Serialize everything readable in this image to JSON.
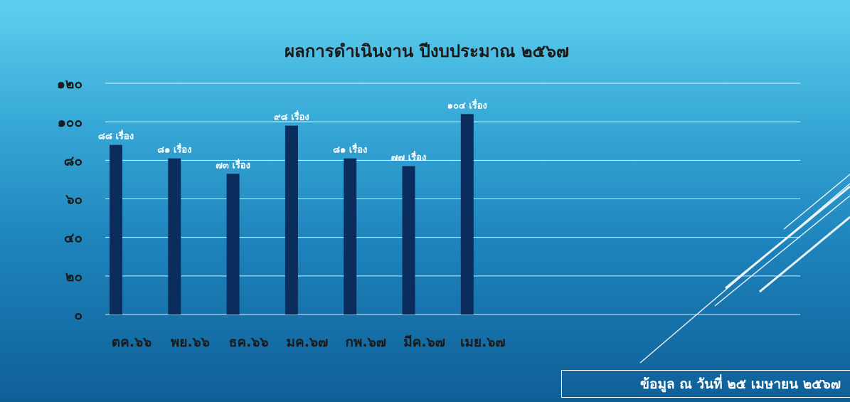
{
  "chart_data": {
    "type": "bar",
    "title": "ผลการดำเนินงาน ปีงบประมาณ ๒๕๖๗",
    "categories": [
      "ตค.๖๖",
      "พย.๖๖",
      "ธค.๖๖",
      "มค.๖๗",
      "กพ.๖๗",
      "มีค.๖๗",
      "เมย.๖๗"
    ],
    "values": [
      88,
      81,
      73,
      98,
      81,
      77,
      104
    ],
    "data_labels": [
      "๘๘ เรื่อง",
      "๘๑ เรื่อง",
      "๗๓ เรื่อง",
      "๙๘ เรื่อง",
      "๘๑ เรื่อง",
      "๗๗ เรื่อง",
      "๑๐๔ เรื่อง"
    ],
    "yticks": [
      0,
      20,
      40,
      60,
      80,
      100,
      120
    ],
    "ytick_labels": [
      "๐",
      "๒๐",
      "๔๐",
      "๖๐",
      "๘๐",
      "๑๐๐",
      "๑๒๐"
    ],
    "ylim": [
      0,
      120
    ],
    "grid": true,
    "xlabel": "",
    "ylabel": "",
    "bar_color": "#0b2d5e"
  },
  "footer": {
    "note": "ข้อมูล ณ วันที่ ๒๕ เมษายน ๒๕๖๗"
  },
  "colors": {
    "background_top": "#5ed0ee",
    "background_bottom": "#0f5f97",
    "bar": "#0b2d5e"
  }
}
